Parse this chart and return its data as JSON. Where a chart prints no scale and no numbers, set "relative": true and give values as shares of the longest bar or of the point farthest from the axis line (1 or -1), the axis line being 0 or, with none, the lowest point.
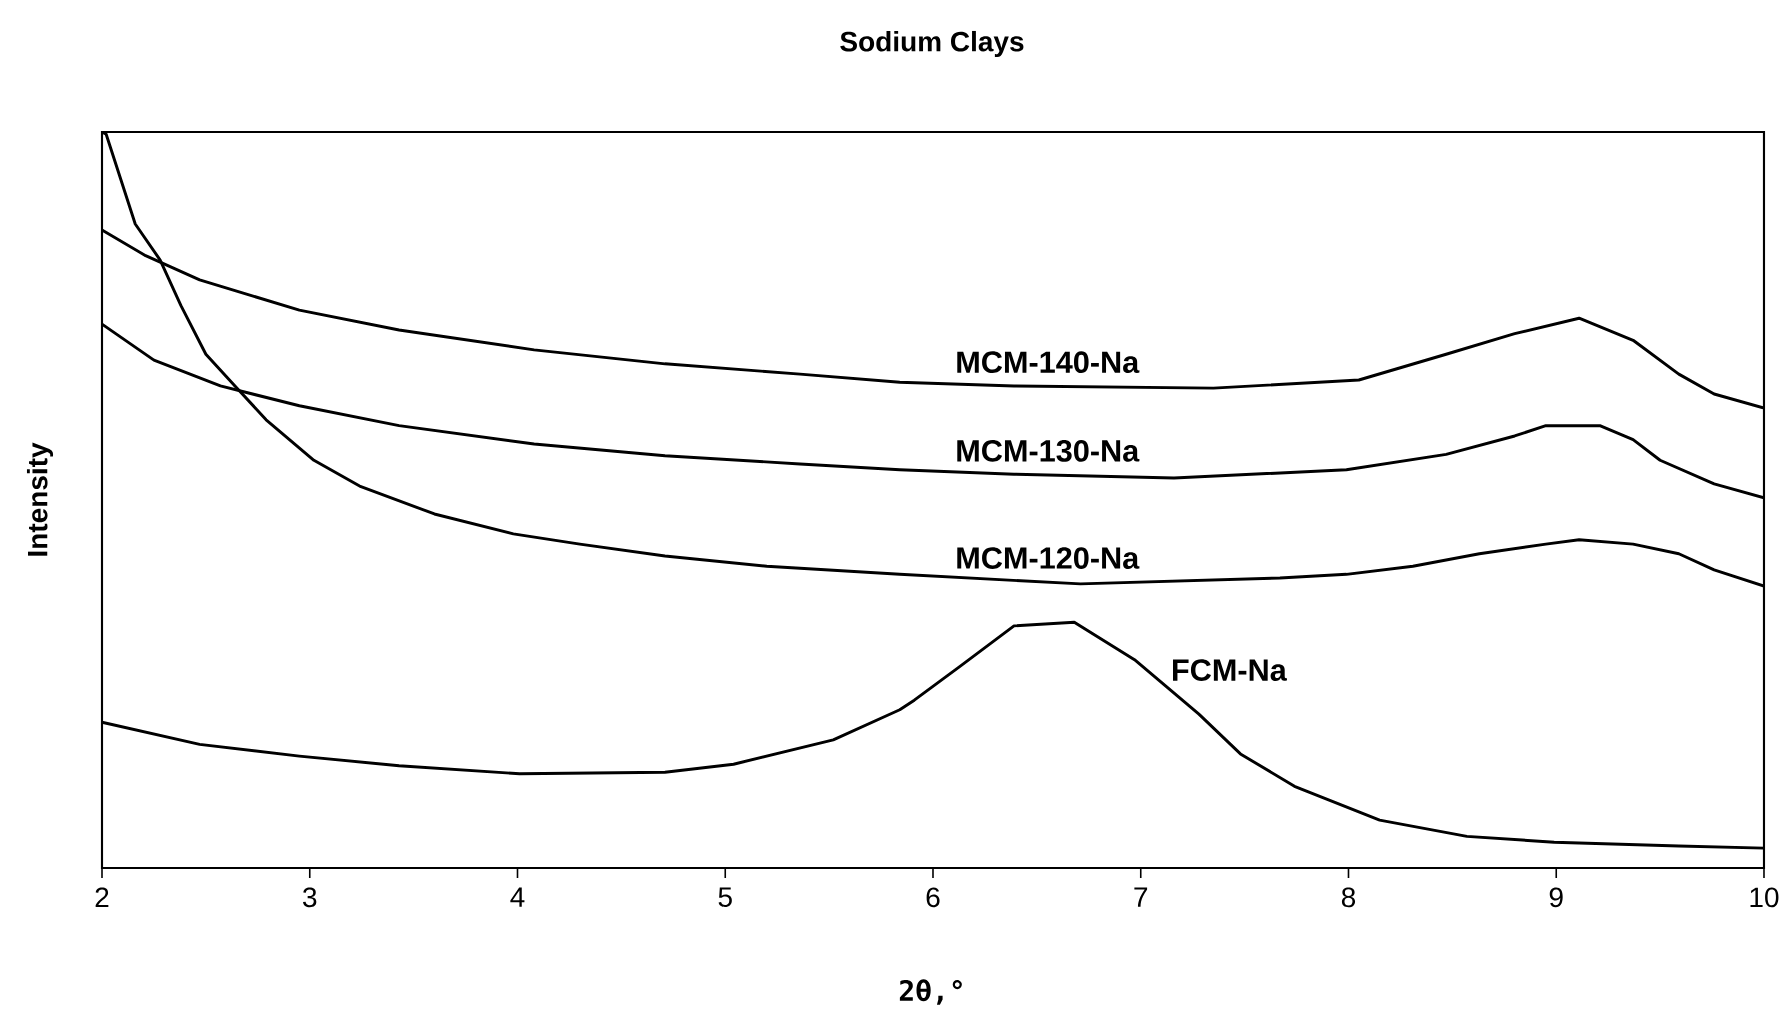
{
  "chart_data": {
    "type": "line",
    "title": "Sodium Clays",
    "xlabel": "2θ,°",
    "ylabel": "Intensity",
    "relative": true,
    "xlim": [
      2,
      10
    ],
    "xticks": [
      2,
      3,
      4,
      5,
      6,
      7,
      8,
      9,
      10
    ],
    "marker": "none",
    "line_style": "solid",
    "tick_labels": "x",
    "series": [
      {
        "name": "MCM-140-Na",
        "color": "#000000",
        "x": [
          2.0,
          2.21,
          2.47,
          2.95,
          3.43,
          4.08,
          4.71,
          5.36,
          5.84,
          6.39,
          7.35,
          8.05,
          8.47,
          8.8,
          9.11,
          9.37,
          9.59,
          9.76,
          10.0
        ],
        "values": [
          0.867,
          0.832,
          0.799,
          0.758,
          0.731,
          0.704,
          0.685,
          0.671,
          0.66,
          0.655,
          0.652,
          0.663,
          0.698,
          0.726,
          0.747,
          0.717,
          0.671,
          0.644,
          0.625
        ]
      },
      {
        "name": "MCM-130-Na",
        "color": "#000000",
        "x": [
          2.0,
          2.25,
          2.57,
          2.95,
          3.43,
          4.08,
          4.71,
          5.36,
          5.84,
          6.39,
          7.16,
          7.99,
          8.47,
          8.8,
          8.95,
          9.21,
          9.37,
          9.5,
          9.76,
          10.0
        ],
        "values": [
          0.739,
          0.69,
          0.655,
          0.628,
          0.601,
          0.576,
          0.56,
          0.549,
          0.541,
          0.535,
          0.53,
          0.541,
          0.562,
          0.587,
          0.601,
          0.601,
          0.582,
          0.554,
          0.522,
          0.503
        ]
      },
      {
        "name": "MCM-120-Na",
        "color": "#000000",
        "x": [
          2.0,
          2.02,
          2.16,
          2.28,
          2.38,
          2.5,
          2.64,
          2.79,
          3.02,
          3.24,
          3.6,
          3.98,
          4.3,
          4.71,
          5.2,
          5.84,
          6.71,
          7.67,
          7.99,
          8.31,
          8.63,
          8.95,
          9.11,
          9.37,
          9.59,
          9.76,
          10.0
        ],
        "values": [
          1.0,
          0.997,
          0.875,
          0.826,
          0.764,
          0.698,
          0.655,
          0.609,
          0.554,
          0.519,
          0.481,
          0.454,
          0.44,
          0.424,
          0.41,
          0.399,
          0.386,
          0.394,
          0.399,
          0.41,
          0.427,
          0.44,
          0.446,
          0.44,
          0.427,
          0.405,
          0.383
        ]
      },
      {
        "name": "FCM-Na",
        "color": "#000000",
        "x": [
          2.0,
          2.47,
          2.95,
          3.43,
          4.01,
          4.71,
          5.04,
          5.52,
          5.84,
          5.91,
          6.13,
          6.39,
          6.68,
          6.97,
          7.28,
          7.48,
          7.74,
          8.15,
          8.57,
          8.99,
          9.59,
          10.0
        ],
        "values": [
          0.198,
          0.168,
          0.152,
          0.139,
          0.128,
          0.13,
          0.141,
          0.174,
          0.215,
          0.228,
          0.274,
          0.329,
          0.334,
          0.283,
          0.209,
          0.155,
          0.111,
          0.065,
          0.043,
          0.035,
          0.03,
          0.027
        ]
      }
    ]
  }
}
